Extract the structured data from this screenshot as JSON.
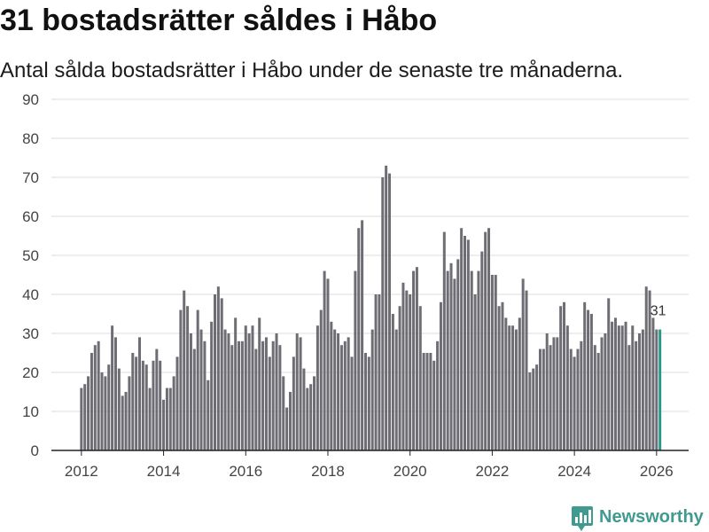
{
  "chart_data": {
    "type": "bar",
    "title": "31 bostadsrätter såldes i Håbo",
    "subtitle": "Antal sålda bostadsrätter i Håbo under de senaste tre månaderna.",
    "x_ticks": [
      "2012",
      "2014",
      "2016",
      "2018",
      "2020",
      "2022",
      "2024",
      "2026"
    ],
    "y_ticks": [
      0,
      10,
      20,
      30,
      40,
      50,
      60,
      70,
      80,
      90
    ],
    "ylim": [
      0,
      90
    ],
    "xlim": [
      2011.27,
      2026.78
    ],
    "x_start": 2012,
    "x_step": 0.08333,
    "grid": true,
    "values": [
      16,
      17,
      19,
      25,
      27,
      28,
      20,
      19,
      22,
      32,
      29,
      21,
      14,
      15,
      19,
      25,
      24,
      29,
      23,
      22,
      16,
      23,
      26,
      23,
      13,
      16,
      16,
      19,
      24,
      36,
      41,
      37,
      30,
      26,
      36,
      31,
      28,
      18,
      33,
      40,
      42,
      39,
      31,
      30,
      27,
      34,
      28,
      28,
      32,
      30,
      32,
      26,
      34,
      28,
      29,
      24,
      28,
      30,
      27,
      19,
      11,
      15,
      24,
      30,
      29,
      21,
      16,
      17,
      19,
      32,
      36,
      46,
      44,
      33,
      31,
      30,
      27,
      28,
      29,
      24,
      46,
      57,
      59,
      25,
      24,
      31,
      40,
      40,
      70,
      73,
      71,
      35,
      31,
      37,
      43,
      41,
      40,
      46,
      47,
      37,
      25,
      25,
      25,
      23,
      28,
      38,
      56,
      46,
      48,
      44,
      49,
      57,
      55,
      54,
      46,
      40,
      46,
      51,
      56,
      57,
      45,
      45,
      37,
      38,
      34,
      32,
      32,
      31,
      34,
      44,
      41,
      20,
      21,
      22,
      26,
      26,
      30,
      27,
      29,
      29,
      37,
      38,
      32,
      26,
      24,
      26,
      28,
      38,
      36,
      35,
      27,
      25,
      29,
      30,
      39,
      33,
      34,
      32,
      32,
      33,
      27,
      32,
      28,
      30,
      31,
      42,
      41,
      34,
      31,
      31
    ],
    "highlight": {
      "index": 169,
      "label": "31"
    }
  },
  "branding": {
    "logo_text": "Newsworthy"
  },
  "colors": {
    "bar": "#6e6d73",
    "highlight": "#27998a",
    "brand": "#419a8f"
  }
}
